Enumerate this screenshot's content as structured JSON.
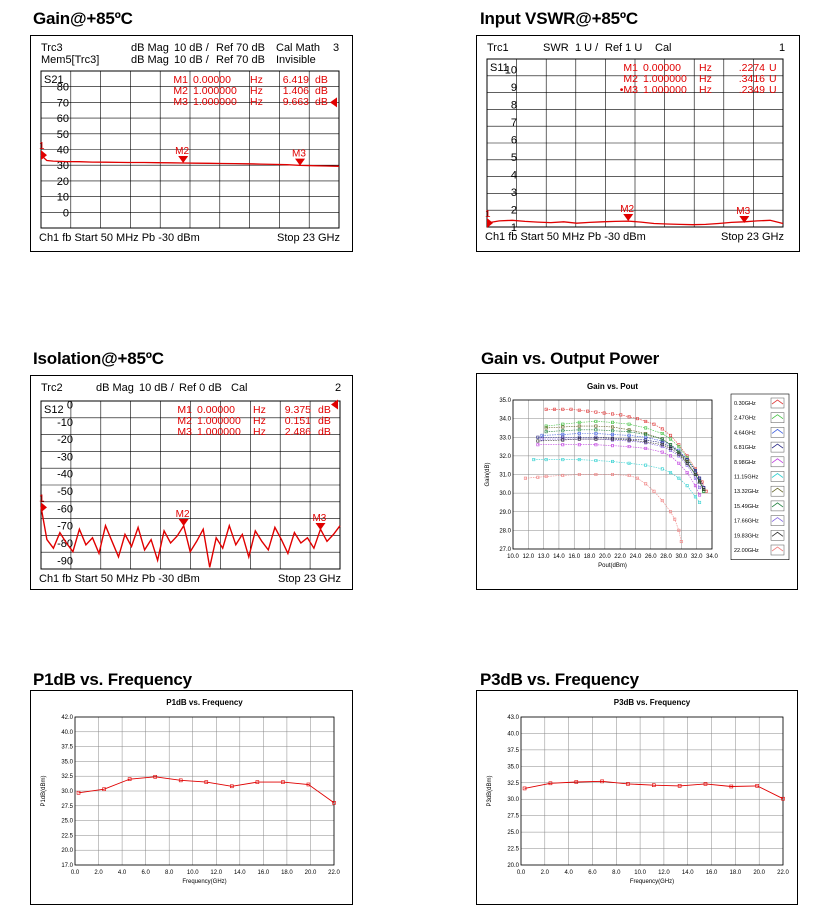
{
  "sections": {
    "gain": {
      "title": "Gain@+85ºC"
    },
    "vswr": {
      "title": "Input VSWR@+85ºC"
    },
    "iso": {
      "title": "Isolation@+85ºC"
    },
    "pout": {
      "title": "Gain vs. Output Power"
    },
    "p1db": {
      "title": "P1dB vs. Frequency"
    },
    "p3db": {
      "title": "P3dB vs. Frequency"
    }
  },
  "colors": {
    "trace": "#e00000",
    "grid": "#000000",
    "plot_grid": "#999999"
  },
  "chart_data": [
    {
      "type": "line",
      "id": "gain",
      "header": {
        "line1": [
          "Trc3",
          "dB Mag",
          "10 dB /",
          "Ref 70 dB",
          "Cal Math",
          "3"
        ],
        "line2": [
          "Mem5[Trc3]",
          "dB Mag",
          "10 dB /",
          "Ref 70 dB",
          "Invisible"
        ]
      },
      "trace_name": "S21",
      "y_ticks": [
        80,
        70,
        60,
        50,
        40,
        30,
        20,
        10,
        0
      ],
      "ylim": [
        -10,
        90
      ],
      "markers": [
        {
          "name": "M1",
          "freq": "0.00000",
          "unit": "Hz",
          "value": "6.419",
          "vunit": "dB"
        },
        {
          "name": "M2",
          "freq": "1.000000",
          "unit": "Hz",
          "value": "1.406",
          "vunit": "dB"
        },
        {
          "name": "M3",
          "freq": "1.000000",
          "unit": "Hz",
          "value": "9.663",
          "vunit": "dB"
        }
      ],
      "marker_points": [
        {
          "label": "1",
          "x": 0.05,
          "y": 36.4
        },
        {
          "label": "M2",
          "x": 11,
          "y": 31.4
        },
        {
          "label": "M3",
          "x": 20,
          "y": 29.7
        }
      ],
      "ref_arrow": 70,
      "footer": {
        "left": "Ch1  fb  Start  50 MHz   Pb   -30 dBm",
        "right": "Stop  23 GHz"
      },
      "trace": {
        "x": [
          0.05,
          0.5,
          1,
          2,
          3,
          4,
          5,
          6,
          7,
          8,
          9,
          10,
          11,
          12,
          13,
          14,
          15,
          16,
          17,
          18,
          19,
          20,
          21,
          22,
          23
        ],
        "y": [
          36.4,
          33,
          32.6,
          32.3,
          32.2,
          32.0,
          31.9,
          31.8,
          31.7,
          31.7,
          31.6,
          31.5,
          31.4,
          31.3,
          31.2,
          31.1,
          31.0,
          30.9,
          30.7,
          30.5,
          30.3,
          29.9,
          29.7,
          29.5,
          29.3
        ]
      },
      "xlim": [
        0.05,
        23
      ]
    },
    {
      "type": "line",
      "id": "vswr",
      "header": {
        "line1": [
          "Trc1",
          "SWR",
          "1 U /",
          "Ref 1 U",
          "Cal",
          "1"
        ]
      },
      "trace_name": "S11",
      "y_ticks": [
        10,
        9,
        8,
        7,
        6,
        5,
        4,
        3,
        2,
        1
      ],
      "ylim": [
        1,
        10.6
      ],
      "markers": [
        {
          "name": "M1",
          "freq": "0.00000",
          "unit": "Hz",
          "value": ".2274",
          "vunit": "U"
        },
        {
          "name": "M2",
          "freq": "1.000000",
          "unit": "Hz",
          "value": ".3416",
          "vunit": "U"
        },
        {
          "name": "•M3",
          "freq": "1.000000",
          "unit": "Hz",
          "value": ".2349",
          "vunit": "U"
        }
      ],
      "marker_points": [
        {
          "label": "1",
          "x": 0.05,
          "y": 1.23
        },
        {
          "label": "M2",
          "x": 11,
          "y": 1.34
        },
        {
          "label": "M3",
          "x": 20,
          "y": 1.23
        }
      ],
      "footer": {
        "left": "Ch1  fb  Start  50 MHz   Pb   -30 dBm",
        "right": "Stop  23 GHz"
      },
      "trace": {
        "x": [
          0.05,
          1,
          2,
          3,
          4,
          5,
          6,
          7,
          8,
          9,
          10,
          11,
          12,
          13,
          14,
          15,
          16,
          17,
          18,
          19,
          20,
          21,
          22,
          23
        ],
        "y": [
          1.23,
          1.35,
          1.38,
          1.32,
          1.28,
          1.25,
          1.3,
          1.22,
          1.26,
          1.3,
          1.32,
          1.34,
          1.28,
          1.2,
          1.17,
          1.15,
          1.13,
          1.15,
          1.2,
          1.26,
          1.3,
          1.35,
          1.38,
          1.2
        ]
      },
      "xlim": [
        0.05,
        23
      ]
    },
    {
      "type": "line",
      "id": "iso",
      "header": {
        "line1": [
          "Trc2",
          "dB Mag",
          "10 dB /",
          "Ref 0 dB",
          "Cal",
          "2"
        ]
      },
      "trace_name": "S12",
      "y_ticks": [
        0,
        -10,
        -20,
        -30,
        -40,
        -50,
        -60,
        -70,
        -80,
        -90
      ],
      "ylim": [
        -95,
        2
      ],
      "markers": [
        {
          "name": "M1",
          "freq": "0.00000",
          "unit": "Hz",
          "value": "9.375",
          "vunit": "dB"
        },
        {
          "name": "M2",
          "freq": "1.000000",
          "unit": "Hz",
          "value": "0.151",
          "vunit": "dB"
        },
        {
          "name": "M3",
          "freq": "1.000000",
          "unit": "Hz",
          "value": "2.486",
          "vunit": "dB"
        }
      ],
      "marker_points": [
        {
          "label": "1",
          "x": 0.05,
          "y": -59.4
        },
        {
          "label": "M2",
          "x": 11,
          "y": -70.2
        },
        {
          "label": "M3",
          "x": 21.5,
          "y": -72.5
        }
      ],
      "ref_arrow": 0,
      "footer": {
        "left": "Ch1  fb  Start  50 MHz   Pb   -30 dBm",
        "right": "Stop  23 GHz"
      },
      "trace": {
        "x": [
          0.05,
          0.5,
          1.0,
          1.5,
          2.0,
          2.5,
          3.0,
          3.5,
          4.0,
          4.5,
          5.0,
          5.5,
          6.0,
          6.5,
          7.0,
          7.5,
          8.0,
          8.5,
          9.0,
          9.5,
          10.0,
          10.5,
          11.0,
          11.5,
          12.0,
          12.5,
          13.0,
          13.5,
          14.0,
          14.5,
          15.0,
          15.5,
          16.0,
          16.5,
          17.0,
          17.5,
          18.0,
          18.5,
          19.0,
          19.5,
          20.0,
          20.5,
          21.0,
          21.5,
          22.0,
          22.5,
          23.0
        ],
        "y": [
          -59,
          -78,
          -83,
          -74,
          -80,
          -85,
          -72,
          -81,
          -77,
          -86,
          -70,
          -79,
          -88,
          -75,
          -82,
          -71,
          -84,
          -78,
          -90,
          -73,
          -80,
          -76,
          -70,
          -85,
          -79,
          -72,
          -94,
          -77,
          -83,
          -70,
          -81,
          -75,
          -88,
          -73,
          -79,
          -84,
          -71,
          -78,
          -86,
          -74,
          -80,
          -77,
          -83,
          -72,
          -79,
          -75,
          -70
        ]
      },
      "xlim": [
        0.05,
        23
      ]
    },
    {
      "type": "line",
      "id": "pout",
      "title": "Gain vs. Pout",
      "xlabel": "Pout(dBm)",
      "ylabel": "Gain(dB)",
      "xlim": [
        10,
        34
      ],
      "ylim": [
        27,
        35
      ],
      "x_ticks": [
        "10.0",
        "12.0",
        "13.0",
        "14.0",
        "16.0",
        "18.0",
        "20.0",
        "22.0",
        "24.0",
        "26.0",
        "28.0",
        "30.0",
        "32.0",
        "34.0"
      ],
      "y_ticks": [
        "35.0",
        "34.0",
        "33.0",
        "32.0",
        "31.0",
        "30.0",
        "29.0",
        "28.0",
        "27.0"
      ],
      "legend_position": "right",
      "series": [
        {
          "name": "0.30GHz",
          "color": "#e04040",
          "x": [
            14,
            15,
            16,
            17,
            18,
            19,
            20,
            21,
            22,
            23,
            24,
            25,
            26,
            27,
            28,
            29,
            30,
            31,
            32,
            32.8,
            33.3
          ],
          "y": [
            34.5,
            34.5,
            34.5,
            34.5,
            34.45,
            34.4,
            34.35,
            34.3,
            34.25,
            34.2,
            34.1,
            34,
            33.85,
            33.7,
            33.45,
            33.1,
            32.6,
            32,
            31.3,
            30.6,
            30.1
          ]
        },
        {
          "name": "2.47GHz",
          "color": "#40c040",
          "x": [
            14,
            16,
            18,
            20,
            22,
            24,
            26,
            28,
            29,
            30,
            31,
            32,
            32.5,
            33
          ],
          "y": [
            33.6,
            33.7,
            33.8,
            33.85,
            33.8,
            33.7,
            33.5,
            33.2,
            32.9,
            32.5,
            31.9,
            31.2,
            30.7,
            30.1
          ]
        },
        {
          "name": "4.64GHz",
          "color": "#4060e0",
          "x": [
            13.5,
            16,
            18,
            20,
            22,
            24,
            26,
            28,
            29,
            30,
            31,
            32,
            32.5,
            33
          ],
          "y": [
            33.1,
            33.15,
            33.2,
            33.2,
            33.15,
            33.1,
            33,
            32.8,
            32.6,
            32.3,
            31.8,
            31.2,
            30.8,
            30.3
          ]
        },
        {
          "name": "6.81GHz",
          "color": "#202080",
          "x": [
            13,
            16,
            18,
            20,
            22,
            24,
            26,
            28,
            29,
            30,
            31,
            32,
            32.5,
            33
          ],
          "y": [
            33.0,
            33.0,
            33.0,
            33.0,
            32.95,
            32.9,
            32.85,
            32.7,
            32.5,
            32.2,
            31.8,
            31.2,
            30.8,
            30.3
          ]
        },
        {
          "name": "8.98GHz",
          "color": "#c040e0",
          "x": [
            13,
            16,
            18,
            20,
            22,
            24,
            26,
            28,
            29,
            30,
            31,
            32,
            32.5
          ],
          "y": [
            32.6,
            32.6,
            32.6,
            32.6,
            32.55,
            32.5,
            32.4,
            32.2,
            32,
            31.6,
            31.1,
            30.4,
            29.9
          ]
        },
        {
          "name": "11.15GHz",
          "color": "#30d0d0",
          "x": [
            12.5,
            14,
            16,
            18,
            20,
            22,
            24,
            26,
            28,
            29,
            30,
            31,
            32,
            32.5
          ],
          "y": [
            31.8,
            31.8,
            31.8,
            31.8,
            31.75,
            31.7,
            31.6,
            31.5,
            31.3,
            31.1,
            30.8,
            30.4,
            29.8,
            29.5
          ]
        },
        {
          "name": "13.32GHz",
          "color": "#606020",
          "x": [
            14,
            16,
            18,
            20,
            22,
            24,
            26,
            28,
            29,
            30,
            31,
            32,
            32.5,
            33
          ],
          "y": [
            33.5,
            33.55,
            33.6,
            33.6,
            33.55,
            33.4,
            33.2,
            32.9,
            32.6,
            32.2,
            31.7,
            31.0,
            30.6,
            30.2
          ]
        },
        {
          "name": "15.49GHz",
          "color": "#208040",
          "x": [
            14,
            16,
            18,
            20,
            22,
            24,
            26,
            28,
            29,
            30,
            31,
            32,
            32.5,
            33
          ],
          "y": [
            33.3,
            33.35,
            33.4,
            33.4,
            33.35,
            33.3,
            33.15,
            32.9,
            32.6,
            32.2,
            31.6,
            31.0,
            30.6,
            30.1
          ]
        },
        {
          "name": "17.66GHz",
          "color": "#8060e0",
          "x": [
            13.5,
            16,
            18,
            20,
            22,
            24,
            26,
            28,
            29,
            30,
            31,
            32,
            32.5
          ],
          "y": [
            32.9,
            32.9,
            32.9,
            32.9,
            32.85,
            32.8,
            32.7,
            32.5,
            32.3,
            32.0,
            31.5,
            30.8,
            30.3
          ]
        },
        {
          "name": "19.83GHz",
          "color": "#303030",
          "x": [
            13,
            16,
            18,
            20,
            22,
            24,
            26,
            28,
            29,
            30,
            31,
            32,
            32.5,
            33
          ],
          "y": [
            32.8,
            32.85,
            32.9,
            32.9,
            32.9,
            32.85,
            32.75,
            32.6,
            32.4,
            32.1,
            31.6,
            31.0,
            30.6,
            30.2
          ]
        },
        {
          "name": "22.00GHz",
          "color": "#f08080",
          "x": [
            11.5,
            13,
            14,
            16,
            18,
            20,
            22,
            24,
            25,
            26,
            27,
            28,
            29,
            29.5,
            30,
            30.3
          ],
          "y": [
            30.8,
            30.85,
            30.9,
            30.95,
            31,
            31,
            31,
            30.95,
            30.8,
            30.5,
            30.1,
            29.6,
            29,
            28.6,
            28.0,
            27.4
          ]
        }
      ]
    },
    {
      "type": "line",
      "id": "p1db",
      "title": "P1dB vs. Frequency",
      "xlabel": "Frequency(GHz)",
      "ylabel": "P1dB(dBm)",
      "xlim": [
        0,
        22
      ],
      "ylim": [
        17,
        42
      ],
      "x_ticks": [
        "0.0",
        "2.0",
        "4.0",
        "6.0",
        "8.0",
        "10.0",
        "12.0",
        "14.0",
        "16.0",
        "18.0",
        "20.0",
        "22.0"
      ],
      "y_ticks": [
        "42.0",
        "40.0",
        "37.5",
        "35.0",
        "32.5",
        "30.0",
        "27.5",
        "25.0",
        "22.5",
        "20.0",
        "17.0"
      ],
      "series": [
        {
          "name": "",
          "color": "#e00000",
          "x": [
            0.3,
            2.47,
            4.64,
            6.81,
            8.98,
            11.15,
            13.32,
            15.49,
            17.66,
            19.83,
            22
          ],
          "y": [
            29.2,
            29.8,
            31.5,
            31.9,
            31.3,
            31.0,
            30.3,
            31.0,
            31.0,
            30.6,
            27.5
          ]
        }
      ]
    },
    {
      "type": "line",
      "id": "p3db",
      "title": "P3dB vs. Frequency",
      "xlabel": "Frequency(GHz)",
      "ylabel": "P3dB(dBm)",
      "xlim": [
        0,
        22
      ],
      "ylim": [
        20,
        43
      ],
      "x_ticks": [
        "0.0",
        "2.0",
        "4.0",
        "6.0",
        "8.0",
        "10.0",
        "12.0",
        "14.0",
        "16.0",
        "18.0",
        "20.0",
        "22.0"
      ],
      "y_ticks": [
        "43.0",
        "40.0",
        "37.5",
        "35.0",
        "32.5",
        "30.0",
        "27.5",
        "25.0",
        "22.5",
        "20.0"
      ],
      "series": [
        {
          "name": "",
          "color": "#e00000",
          "x": [
            0.3,
            2.47,
            4.64,
            6.81,
            8.98,
            11.15,
            13.32,
            15.49,
            17.66,
            19.83,
            22
          ],
          "y": [
            31.9,
            32.7,
            32.9,
            33.0,
            32.6,
            32.4,
            32.3,
            32.6,
            32.2,
            32.3,
            30.3
          ]
        }
      ]
    }
  ]
}
